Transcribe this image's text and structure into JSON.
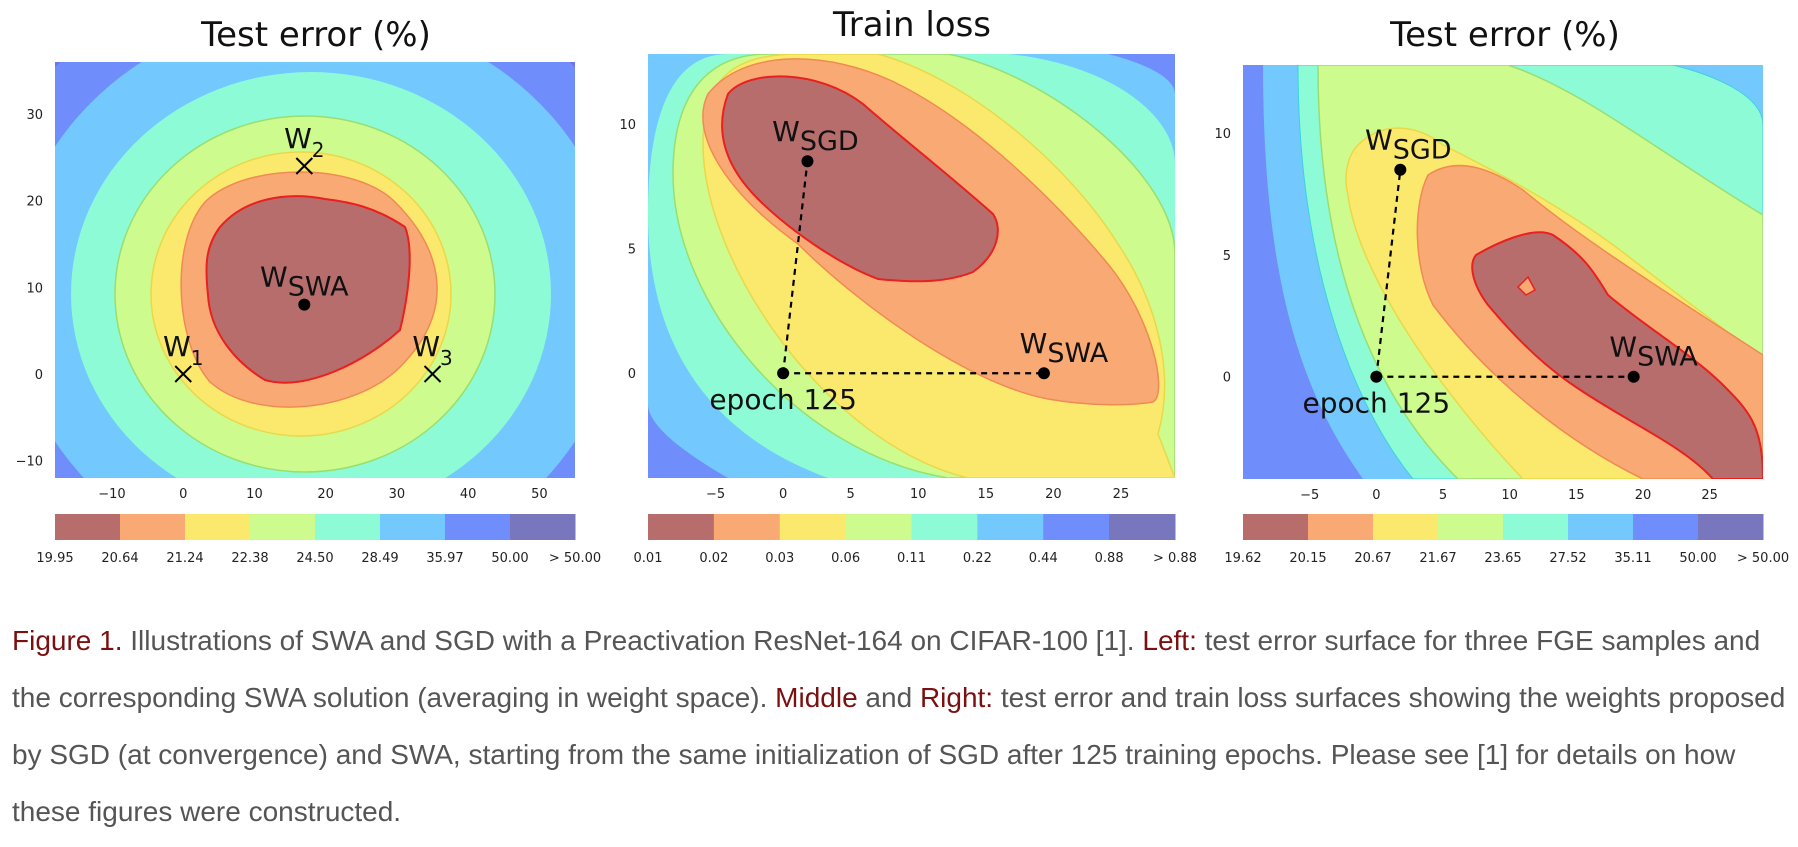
{
  "chart_data": [
    {
      "type": "contour",
      "title": "Test error (%)",
      "xlim": [
        -18,
        55
      ],
      "ylim": [
        -12,
        36
      ],
      "xticks": [
        "−10",
        "0",
        "10",
        "20",
        "30",
        "40",
        "50"
      ],
      "xtick_values": [
        -10,
        0,
        10,
        20,
        30,
        40,
        50
      ],
      "yticks": [
        "−10",
        "0",
        "10",
        "20",
        "30"
      ],
      "ytick_values": [
        -10,
        0,
        10,
        20,
        30
      ],
      "contour_levels": [
        "19.95",
        "20.64",
        "21.24",
        "22.38",
        "24.50",
        "28.49",
        "35.97",
        "50.00",
        "> 50.00"
      ],
      "points": [
        {
          "label": "W",
          "sub": "1",
          "x": 0,
          "y": 0,
          "marker": "x"
        },
        {
          "label": "W",
          "sub": "2",
          "x": 17,
          "y": 24,
          "marker": "x"
        },
        {
          "label": "W",
          "sub": "3",
          "x": 35,
          "y": 0,
          "marker": "x"
        },
        {
          "label": "W",
          "sub": "SWA",
          "x": 17,
          "y": 8,
          "marker": "dot"
        }
      ]
    },
    {
      "type": "contour",
      "title": "Train loss",
      "xlim": [
        -10,
        29
      ],
      "ylim": [
        -4.2,
        12.8
      ],
      "xticks": [
        "−5",
        "0",
        "5",
        "10",
        "15",
        "20",
        "25"
      ],
      "xtick_values": [
        -5,
        0,
        5,
        10,
        15,
        20,
        25
      ],
      "yticks": [
        "0",
        "5",
        "10"
      ],
      "ytick_values": [
        0,
        5,
        10
      ],
      "contour_levels": [
        "0.01",
        "0.02",
        "0.03",
        "0.06",
        "0.11",
        "0.22",
        "0.44",
        "0.88",
        "> 0.88"
      ],
      "points": [
        {
          "label": "W",
          "sub": "SGD",
          "x": 1.8,
          "y": 8.5,
          "marker": "dot"
        },
        {
          "label": "W",
          "sub": "SWA",
          "x": 19.3,
          "y": 0,
          "marker": "dot"
        },
        {
          "label": "epoch 125",
          "sub": "",
          "x": 0,
          "y": 0,
          "marker": "dot"
        }
      ]
    },
    {
      "type": "contour",
      "title": "Test error (%)",
      "xlim": [
        -10,
        29
      ],
      "ylim": [
        -4.2,
        12.8
      ],
      "xticks": [
        "−5",
        "0",
        "5",
        "10",
        "15",
        "20",
        "25"
      ],
      "xtick_values": [
        -5,
        0,
        5,
        10,
        15,
        20,
        25
      ],
      "yticks": [
        "0",
        "5",
        "10"
      ],
      "ytick_values": [
        0,
        5,
        10
      ],
      "contour_levels": [
        "19.62",
        "20.15",
        "20.67",
        "21.67",
        "23.65",
        "27.52",
        "35.11",
        "50.00",
        "> 50.00"
      ],
      "points": [
        {
          "label": "W",
          "sub": "SGD",
          "x": 1.8,
          "y": 8.5,
          "marker": "dot"
        },
        {
          "label": "W",
          "sub": "SWA",
          "x": 19.3,
          "y": 0,
          "marker": "dot"
        },
        {
          "label": "epoch 125",
          "sub": "",
          "x": 0,
          "y": 0,
          "marker": "dot"
        }
      ]
    }
  ],
  "colors": [
    "#b86d6d",
    "#f9aa74",
    "#fbe96d",
    "#cdfb8e",
    "#8dfbd6",
    "#73c8fd",
    "#6f8efb",
    "#7470f3",
    "#7876bd"
  ],
  "caption": {
    "figure_label": "Figure 1.",
    "part1": " Illustrations of SWA and SGD with a Preactivation ResNet-164 on CIFAR-100 [1]. ",
    "left_label": "Left:",
    "part2": " test error surface for three FGE samples and the corresponding SWA solution (averaging in weight space). ",
    "middle_label": "Middle",
    "and_word": " and ",
    "right_label": "Right:",
    "part3": " test error and train loss surfaces showing the weights proposed by SGD (at convergence) and SWA, starting from the same initialization of SGD after 125 training epochs. Please see [1] for details on how these figures were constructed."
  }
}
